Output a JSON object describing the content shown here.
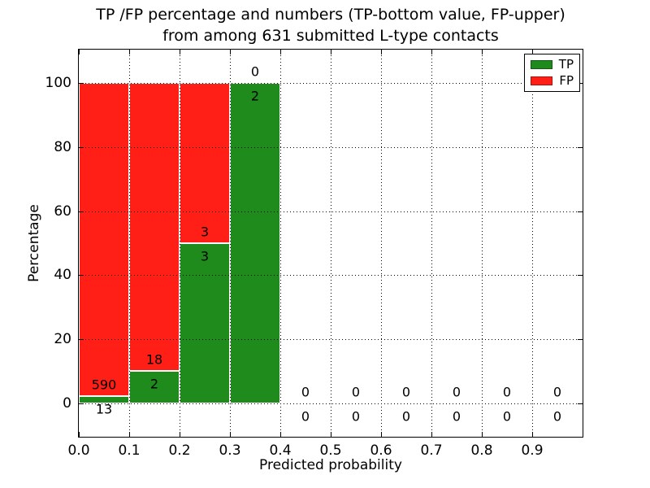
{
  "chart_data": {
    "type": "bar",
    "stacked": true,
    "title_line1": "TP /FP percentage and numbers (TP-bottom value, FP-upper)",
    "title_line2": "from among 631 submitted L-type contacts",
    "xlabel": "Predicted probability",
    "ylabel": "Percentage",
    "total_contacts": 631,
    "xlim": [
      0.0,
      1.0
    ],
    "ylim": [
      -10.5,
      110.5
    ],
    "xticks": [
      0.0,
      0.1,
      0.2,
      0.3,
      0.4,
      0.5,
      0.6,
      0.7,
      0.8,
      0.9
    ],
    "xtick_labels": [
      "0.0",
      "0.1",
      "0.2",
      "0.3",
      "0.4",
      "0.5",
      "0.6",
      "0.7",
      "0.8",
      "0.9"
    ],
    "yticks": [
      0,
      20,
      40,
      60,
      80,
      100
    ],
    "ytick_labels": [
      "0",
      "20",
      "40",
      "60",
      "80",
      "100"
    ],
    "grid": true,
    "grid_style": "dotted",
    "bar_edge_color": "#ffffff",
    "colors": {
      "tp": "#1f8b1d",
      "fp": "#ff1f16",
      "text": "#000000",
      "background": "#ffffff"
    },
    "bins": [
      {
        "x0": 0.0,
        "x1": 0.1,
        "tp_count": 13,
        "fp_count": 590,
        "tp_pct": 2.16,
        "fp_pct": 97.84
      },
      {
        "x0": 0.1,
        "x1": 0.2,
        "tp_count": 2,
        "fp_count": 18,
        "tp_pct": 10.0,
        "fp_pct": 90.0
      },
      {
        "x0": 0.2,
        "x1": 0.3,
        "tp_count": 3,
        "fp_count": 3,
        "tp_pct": 50.0,
        "fp_pct": 50.0
      },
      {
        "x0": 0.3,
        "x1": 0.4,
        "tp_count": 2,
        "fp_count": 0,
        "tp_pct": 100.0,
        "fp_pct": 0.0
      },
      {
        "x0": 0.4,
        "x1": 0.5,
        "tp_count": 0,
        "fp_count": 0,
        "tp_pct": 0.0,
        "fp_pct": 0.0
      },
      {
        "x0": 0.5,
        "x1": 0.6,
        "tp_count": 0,
        "fp_count": 0,
        "tp_pct": 0.0,
        "fp_pct": 0.0
      },
      {
        "x0": 0.6,
        "x1": 0.7,
        "tp_count": 0,
        "fp_count": 0,
        "tp_pct": 0.0,
        "fp_pct": 0.0
      },
      {
        "x0": 0.7,
        "x1": 0.8,
        "tp_count": 0,
        "fp_count": 0,
        "tp_pct": 0.0,
        "fp_pct": 0.0
      },
      {
        "x0": 0.8,
        "x1": 0.9,
        "tp_count": 0,
        "fp_count": 0,
        "tp_pct": 0.0,
        "fp_pct": 0.0
      },
      {
        "x0": 0.9,
        "x1": 1.0,
        "tp_count": 0,
        "fp_count": 0,
        "tp_pct": 0.0,
        "fp_pct": 0.0
      }
    ],
    "legend": {
      "position": "upper right",
      "entries": [
        {
          "label": "TP",
          "color": "#1f8b1d"
        },
        {
          "label": "FP",
          "color": "#ff1f16"
        }
      ]
    }
  }
}
